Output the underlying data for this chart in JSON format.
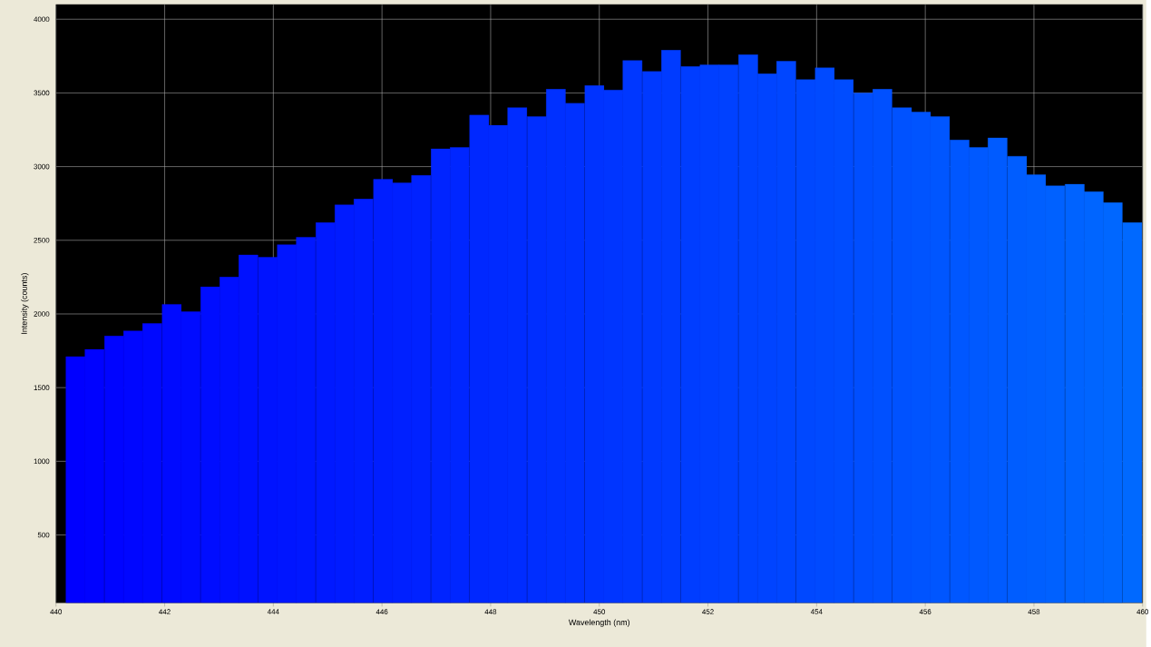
{
  "chart_data": {
    "type": "bar",
    "xlabel": "Wavelength (nm)",
    "ylabel": "Intensity (counts)",
    "x": [
      440.36,
      440.71,
      441.07,
      441.42,
      441.77,
      442.13,
      442.48,
      442.84,
      443.19,
      443.54,
      443.9,
      444.25,
      444.6,
      444.96,
      445.31,
      445.66,
      446.02,
      446.37,
      446.72,
      447.08,
      447.43,
      447.79,
      448.14,
      448.49,
      448.85,
      449.2,
      449.55,
      449.91,
      450.26,
      450.61,
      450.97,
      451.32,
      451.68,
      452.03,
      452.38,
      452.74,
      453.09,
      453.44,
      453.8,
      454.15,
      454.5,
      454.86,
      455.21,
      455.57,
      455.92,
      456.27,
      456.63,
      456.98,
      457.33,
      457.69,
      458.04,
      458.39,
      458.75,
      459.1,
      459.45,
      459.81
    ],
    "values": [
      1710,
      1760,
      1850,
      1885,
      1935,
      2065,
      2015,
      2185,
      2250,
      2400,
      2385,
      2470,
      2520,
      2620,
      2740,
      2780,
      2915,
      2890,
      2940,
      3120,
      3130,
      3350,
      3280,
      3400,
      3340,
      3525,
      3430,
      3550,
      3520,
      3720,
      3645,
      3790,
      3680,
      3690,
      3690,
      3760,
      3630,
      3715,
      3590,
      3670,
      3590,
      3500,
      3525,
      3400,
      3370,
      3340,
      3180,
      3130,
      3195,
      3070,
      2945,
      2870,
      2880,
      2830,
      2755,
      2620
    ],
    "colors": [
      "#0000ff",
      "#0002ff",
      "#0004ff",
      "#0006ff",
      "#0008ff",
      "#000aff",
      "#000bff",
      "#000dff",
      "#000fff",
      "#0011ff",
      "#0013ff",
      "#0015ff",
      "#0017ff",
      "#0019ff",
      "#001bff",
      "#001dff",
      "#001eff",
      "#0020ff",
      "#0022ff",
      "#0024ff",
      "#0026ff",
      "#0028ff",
      "#002aff",
      "#002cff",
      "#002eff",
      "#0030ff",
      "#0031ff",
      "#0033ff",
      "#0035ff",
      "#0037ff",
      "#0039ff",
      "#003bff",
      "#003dff",
      "#003fff",
      "#0041ff",
      "#0043ff",
      "#0044ff",
      "#0046ff",
      "#0048ff",
      "#004aff",
      "#004cff",
      "#004eff",
      "#0050ff",
      "#0052ff",
      "#0054ff",
      "#0056ff",
      "#0057ff",
      "#0059ff",
      "#005bff",
      "#005dff",
      "#005fff",
      "#0061ff",
      "#0063ff",
      "#0065ff",
      "#0067ff",
      "#0069ff"
    ],
    "xlim": [
      440,
      460
    ],
    "xticks": [
      440,
      442,
      444,
      446,
      448,
      450,
      452,
      454,
      456,
      458,
      460
    ],
    "ylim": [
      40,
      4100
    ],
    "yticks": [
      500,
      1000,
      1500,
      2000,
      2500,
      3000,
      3500,
      4000
    ],
    "grid": true
  }
}
